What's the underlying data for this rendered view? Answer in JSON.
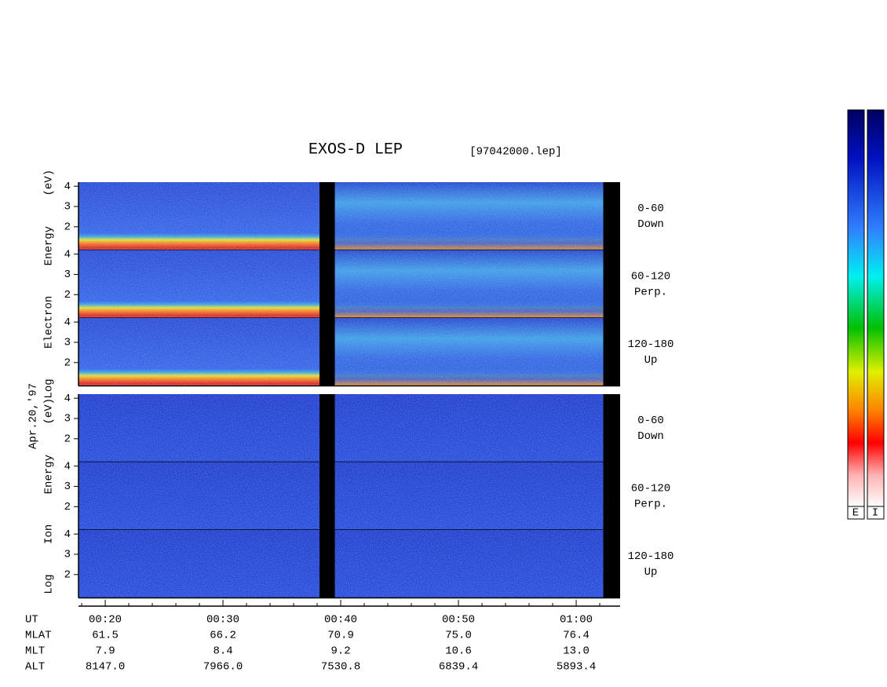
{
  "chart_data": {
    "type": "spectrogram",
    "title": "EXOS-D LEP",
    "file": "[97042000.lep]",
    "date": "Apr.20,'97",
    "panel_groups": [
      {
        "ylabel": "Log Electron Energy (eV)",
        "panels": [
          {
            "label": [
              "0-60",
              "Down"
            ]
          },
          {
            "label": [
              "60-120",
              "Perp."
            ]
          },
          {
            "label": [
              "120-180",
              "Up"
            ]
          }
        ]
      },
      {
        "ylabel": "Log Ion Energy (eV)",
        "panels": [
          {
            "label": [
              "0-60",
              "Down"
            ]
          },
          {
            "label": [
              "60-120",
              "Perp."
            ]
          },
          {
            "label": [
              "120-180",
              "Up"
            ]
          }
        ]
      }
    ],
    "ylim": [
      0.85,
      4.2
    ],
    "yticks": [
      2,
      3,
      4
    ],
    "xlim": [
      17.73,
      63.73
    ],
    "xticks": [
      {
        "value": 20,
        "label": "00:20"
      },
      {
        "value": 30,
        "label": "00:30"
      },
      {
        "value": 40,
        "label": "00:40"
      },
      {
        "value": 50,
        "label": "00:50"
      },
      {
        "value": 60,
        "label": "01:00"
      }
    ],
    "xminorticks": [
      18,
      22,
      24,
      26,
      28,
      32,
      34,
      36,
      38,
      42,
      44,
      46,
      48,
      52,
      54,
      56,
      58,
      62
    ],
    "xlabel": "UT",
    "ephemeris": [
      {
        "name": "MLAT",
        "values": [
          "61.5",
          "66.2",
          "70.9",
          "75.0",
          "76.4"
        ]
      },
      {
        "name": "MLT",
        "values": [
          "7.9",
          "8.4",
          "9.2",
          "10.6",
          "13.0"
        ]
      },
      {
        "name": "ALT",
        "values": [
          "8147.0",
          "7966.0",
          "7530.8",
          "6839.4",
          "5893.4"
        ]
      }
    ],
    "colorbars": [
      "E",
      "I"
    ]
  }
}
